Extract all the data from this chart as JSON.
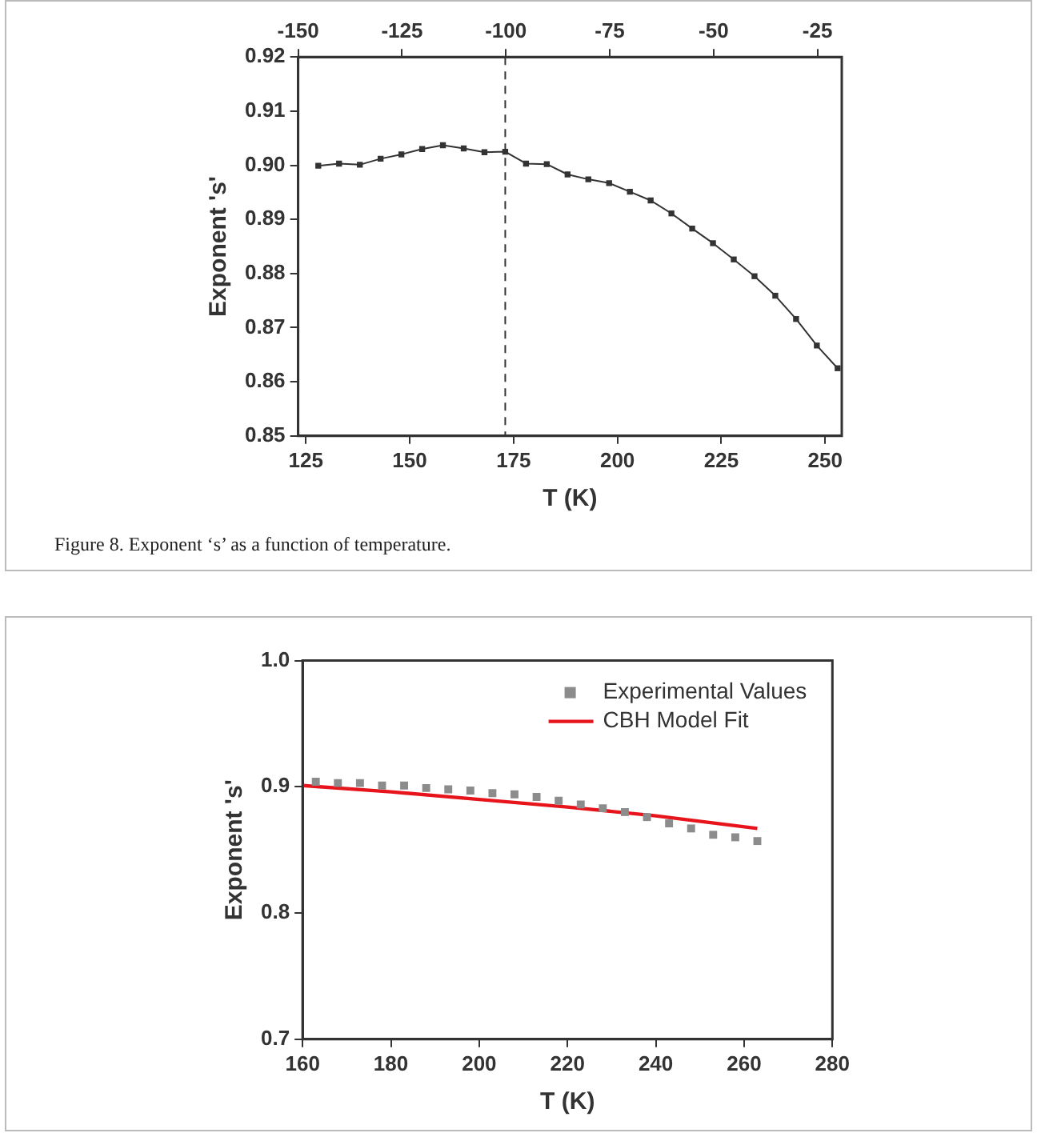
{
  "chart_data": [
    {
      "type": "line",
      "xlabel": "T (K)",
      "ylabel": "Exponent 's'",
      "marker": "square",
      "xlim": [
        123.15,
        254
      ],
      "xticks": [
        125,
        150,
        175,
        200,
        225,
        250
      ],
      "x2lim": [
        -150,
        -19.15
      ],
      "x2ticks": [
        -150,
        -125,
        -100,
        -75,
        -50,
        -25
      ],
      "ylim": [
        0.85,
        0.92
      ],
      "yticks": [
        0.85,
        0.86,
        0.87,
        0.88,
        0.89,
        {
          "value": 0.9,
          "label": "0.90"
        },
        0.91,
        0.92
      ],
      "x": [
        128,
        133,
        138,
        143,
        148,
        153,
        158,
        163,
        168,
        173,
        178,
        183,
        188,
        193,
        198,
        203,
        208,
        213,
        218,
        223,
        228,
        233,
        238,
        243,
        248,
        253
      ],
      "series": [
        {
          "color": "#333333",
          "values": [
            0.8999,
            0.9003,
            0.9001,
            0.9012,
            0.902,
            0.903,
            0.9037,
            0.9031,
            0.9024,
            0.9025,
            0.9003,
            0.9002,
            0.8983,
            0.8974,
            0.8967,
            0.8951,
            0.8935,
            0.8911,
            0.8883,
            0.8856,
            0.8826,
            0.8795,
            0.8759,
            0.8716,
            0.8667,
            0.8625
          ]
        }
      ],
      "ref_lines": [
        {
          "axis": "x",
          "value": 173,
          "color": "#333333",
          "line_style": "dashed"
        }
      ],
      "annotations": [
        "Figure 8. Exponent ‘s’ as a function of temperature."
      ]
    },
    {
      "type": "scatter",
      "xlabel": "T (K)",
      "ylabel": "Exponent 's'",
      "marker": "square",
      "legend": "top right",
      "xlim": [
        160,
        280
      ],
      "xticks": [
        160,
        180,
        200,
        220,
        240,
        260,
        280
      ],
      "ylim": [
        0.7,
        1.0
      ],
      "yticks": [
        0.7,
        0.8,
        0.9,
        {
          "value": 1.0,
          "label": "1.0"
        }
      ],
      "x": [
        163,
        168,
        173,
        178,
        183,
        188,
        193,
        198,
        203,
        208,
        213,
        218,
        223,
        228,
        233,
        238,
        243,
        248,
        253,
        258,
        263
      ],
      "series": [
        {
          "name": "Experimental Values",
          "color": "#8c8c8c",
          "values": [
            0.904,
            0.903,
            0.903,
            0.901,
            0.901,
            0.899,
            0.898,
            0.897,
            0.895,
            0.894,
            0.892,
            0.889,
            0.886,
            0.883,
            0.88,
            0.876,
            0.871,
            0.867,
            0.862,
            0.86,
            0.857
          ]
        },
        {
          "name": "CBH Model Fit",
          "type": "line",
          "marker": "none",
          "color": "#e8141c",
          "x": [
            160,
            180,
            200,
            220,
            240,
            263
          ],
          "values": [
            0.901,
            0.896,
            0.89,
            0.884,
            0.877,
            0.867
          ]
        }
      ]
    }
  ]
}
